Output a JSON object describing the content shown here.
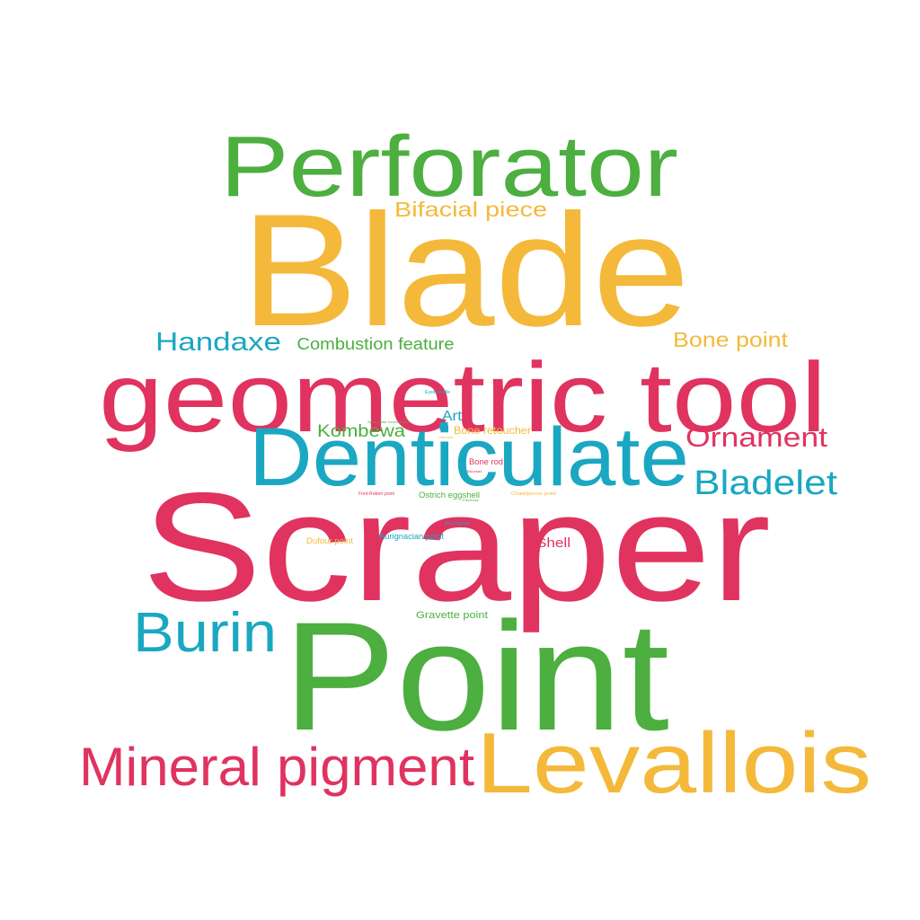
{
  "colors": {
    "green": "#4caf3f",
    "yellow": "#f4b93a",
    "red": "#e0335f",
    "teal": "#1aa7c1"
  },
  "words": [
    {
      "text": "Scraper",
      "color": "red"
    },
    {
      "text": "Point",
      "color": "green"
    },
    {
      "text": "Blade",
      "color": "yellow"
    },
    {
      "text": "geometric tool",
      "color": "red"
    },
    {
      "text": "Denticulate",
      "color": "teal"
    },
    {
      "text": "Perforator",
      "color": "green"
    },
    {
      "text": "Levallois",
      "color": "yellow"
    },
    {
      "text": "Mineral pigment",
      "color": "red"
    },
    {
      "text": "Burin",
      "color": "teal"
    },
    {
      "text": "Bladelet",
      "color": "teal"
    },
    {
      "text": "Ornament",
      "color": "red"
    },
    {
      "text": "Handaxe",
      "color": "teal"
    },
    {
      "text": "Bone point",
      "color": "yellow"
    },
    {
      "text": "Bifacial piece",
      "color": "yellow"
    },
    {
      "text": "Combustion feature",
      "color": "green"
    },
    {
      "text": "Kombewa",
      "color": "green"
    },
    {
      "text": "Art",
      "color": "teal"
    },
    {
      "text": "Shell",
      "color": "red"
    },
    {
      "text": "Bone retoucher",
      "color": "yellow"
    },
    {
      "text": "Gravette point",
      "color": "green"
    },
    {
      "text": "Bone rod",
      "color": "red"
    },
    {
      "text": "Ostrich eggshell",
      "color": "green"
    },
    {
      "text": "Aurignacian point",
      "color": "teal"
    },
    {
      "text": "Dufour point",
      "color": "yellow"
    },
    {
      "text": "Eyed needle",
      "color": "teal"
    },
    {
      "text": "Split-base bone point",
      "color": "green"
    },
    {
      "text": "Font-Robert point",
      "color": "red"
    },
    {
      "text": "Chatelperron point",
      "color": "yellow"
    },
    {
      "text": "Bone bipoint",
      "color": "teal"
    },
    {
      "text": "Burial",
      "color": "red"
    },
    {
      "text": "Diverse",
      "color": "green"
    },
    {
      "text": "Music",
      "color": "yellow"
    },
    {
      "text": "",
      "color": "teal"
    }
  ]
}
